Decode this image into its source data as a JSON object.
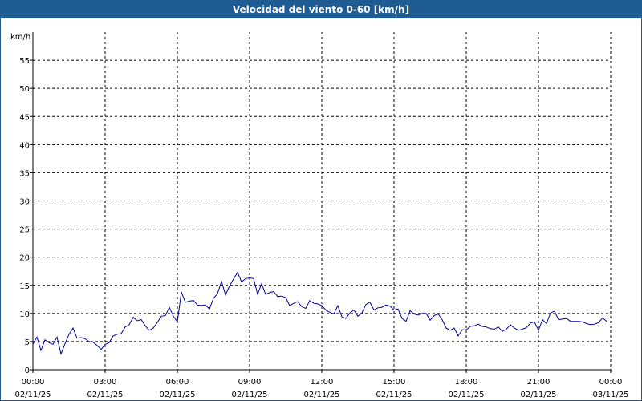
{
  "colors": {
    "title_bar": "#1f5c93",
    "title_text": "#ffffff",
    "line": "#000099",
    "grid": "#000000",
    "background": "#ffffff"
  },
  "chart_data": {
    "type": "line",
    "title": "Velocidad del viento 0-60 [km/h]",
    "ylabel": "km/h",
    "xlabel": "",
    "ylim": [
      0,
      60
    ],
    "xlim": [
      "2025-11-02 00:00",
      "2025-11-03 00:00"
    ],
    "grid": true,
    "legend": "none",
    "yticks": [
      "0",
      "5",
      "10",
      "15",
      "20",
      "25",
      "30",
      "35",
      "40",
      "45",
      "50",
      "55"
    ],
    "xticks": [
      {
        "time": "00:00",
        "date": "02/11/25"
      },
      {
        "time": "03:00",
        "date": "02/11/25"
      },
      {
        "time": "06:00",
        "date": "02/11/25"
      },
      {
        "time": "09:00",
        "date": "02/11/25"
      },
      {
        "time": "12:00",
        "date": "02/11/25"
      },
      {
        "time": "15:00",
        "date": "02/11/25"
      },
      {
        "time": "18:00",
        "date": "02/11/25"
      },
      {
        "time": "21:00",
        "date": "02/11/25"
      },
      {
        "time": "00:00",
        "date": "03/11/25"
      }
    ],
    "series": [
      {
        "x": [
          "00:00",
          "00:10",
          "00:20",
          "00:30",
          "00:40",
          "00:50",
          "01:00",
          "01:10",
          "01:20",
          "01:30",
          "01:40",
          "01:50",
          "02:00",
          "02:10",
          "02:20",
          "02:30",
          "02:40",
          "02:50",
          "03:00",
          "03:10",
          "03:20",
          "03:30",
          "03:40",
          "03:50",
          "04:00",
          "04:10",
          "04:20",
          "04:30",
          "04:40",
          "04:50",
          "05:00",
          "05:10",
          "05:20",
          "05:30",
          "05:40",
          "05:50",
          "06:00",
          "06:10",
          "06:20",
          "06:30",
          "06:40",
          "06:50",
          "07:00",
          "07:10",
          "07:20",
          "07:30",
          "07:40",
          "07:50",
          "08:00",
          "08:10",
          "08:20",
          "08:30",
          "08:40",
          "08:50",
          "09:00",
          "09:10",
          "09:20",
          "09:30",
          "09:40",
          "09:50",
          "10:00",
          "10:10",
          "10:20",
          "10:30",
          "10:40",
          "10:50",
          "11:00",
          "11:10",
          "11:20",
          "11:30",
          "11:40",
          "11:50",
          "12:00",
          "12:10",
          "12:20",
          "12:30",
          "12:40",
          "12:50",
          "13:00",
          "13:10",
          "13:20",
          "13:30",
          "13:40",
          "13:50",
          "14:00",
          "14:10",
          "14:20",
          "14:30",
          "14:40",
          "14:50",
          "15:00",
          "15:10",
          "15:20",
          "15:30",
          "15:40",
          "15:50",
          "16:00",
          "16:10",
          "16:20",
          "16:30",
          "16:40",
          "16:50",
          "17:00",
          "17:10",
          "17:20",
          "17:30",
          "17:40",
          "17:50",
          "18:00",
          "18:10",
          "18:20",
          "18:30",
          "18:40",
          "18:50",
          "19:00",
          "19:10",
          "19:20",
          "19:30",
          "19:40",
          "19:50",
          "20:00",
          "20:10",
          "20:20",
          "20:30",
          "20:40",
          "20:50",
          "21:00",
          "21:10",
          "21:20",
          "21:30",
          "21:40",
          "21:50",
          "22:00",
          "22:10",
          "22:20",
          "22:30",
          "22:40",
          "22:50",
          "23:00",
          "23:10",
          "23:20",
          "23:30",
          "23:40",
          "23:50"
        ],
        "values": [
          4.5,
          5.8,
          3.4,
          5.3,
          4.8,
          4.5,
          5.8,
          2.8,
          4.6,
          6.3,
          7.4,
          5.6,
          5.7,
          5.5,
          5.0,
          4.9,
          4.3,
          3.6,
          4.5,
          4.8,
          6.0,
          6.3,
          6.4,
          7.6,
          8.0,
          9.3,
          8.7,
          8.9,
          7.8,
          7.0,
          7.4,
          8.4,
          9.5,
          9.6,
          11.1,
          9.5,
          8.5,
          13.8,
          12.0,
          12.2,
          12.3,
          11.5,
          11.4,
          11.5,
          10.8,
          12.7,
          13.5,
          15.7,
          13.3,
          14.9,
          16.1,
          17.3,
          15.6,
          16.2,
          16.3,
          16.2,
          13.4,
          15.3,
          13.4,
          13.7,
          13.9,
          13.0,
          13.1,
          12.8,
          11.4,
          11.8,
          12.1,
          11.2,
          10.9,
          12.3,
          11.8,
          11.7,
          11.4,
          10.6,
          10.2,
          9.9,
          11.4,
          9.4,
          9.1,
          10.1,
          10.6,
          9.5,
          10.1,
          11.6,
          12.0,
          10.6,
          11.0,
          11.1,
          11.5,
          11.3,
          10.6,
          10.8,
          9.1,
          8.6,
          10.5,
          9.9,
          9.7,
          10.0,
          10.0,
          8.8,
          9.6,
          9.9,
          8.9,
          7.4,
          7.0,
          7.4,
          6.0,
          7.1,
          7.1,
          7.7,
          7.8,
          8.1,
          7.7,
          7.6,
          7.3,
          7.2,
          7.6,
          6.8,
          7.2,
          8.0,
          7.4,
          7.0,
          7.2,
          7.5,
          8.3,
          8.5,
          7.0,
          8.9,
          8.2,
          10.1,
          10.4,
          8.9,
          9.0,
          9.1,
          8.6,
          8.6,
          8.6,
          8.5,
          8.2,
          8.0,
          8.1,
          8.4,
          9.2,
          8.6
        ]
      }
    ]
  }
}
